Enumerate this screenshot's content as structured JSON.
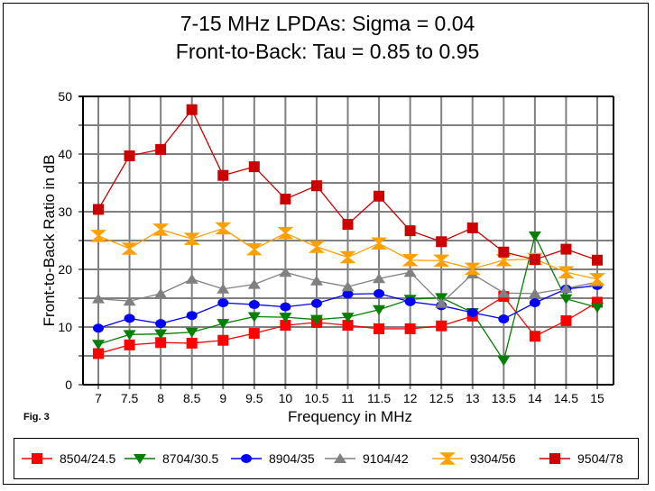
{
  "chart_data": {
    "type": "line",
    "title": "7-15 MHz LPDAs:  Sigma = 0.04",
    "subtitle": "Front-to-Back:  Tau = 0.85 to 0.95",
    "xlabel": "Frequency in MHz",
    "ylabel": "Front-to-Back Ratio in dB",
    "annotation": "Fig. 3",
    "ylim": [
      0,
      50
    ],
    "y_ticks": [
      0,
      10,
      20,
      30,
      40,
      50
    ],
    "y_grid_step": 5,
    "grid": true,
    "legend_position": "bottom",
    "categories": [
      "7",
      "7.5",
      "8",
      "8.5",
      "9",
      "9.5",
      "10",
      "10.5",
      "11",
      "11.5",
      "12",
      "12.5",
      "13",
      "13.5",
      "14",
      "14.5",
      "15"
    ],
    "series": [
      {
        "name": "8504/24.5",
        "color": "#ff0000",
        "marker": "square",
        "values": [
          5.4,
          6.9,
          7.3,
          7.2,
          7.7,
          8.9,
          10.3,
          10.8,
          10.3,
          9.7,
          9.7,
          10.2,
          11.9,
          15.3,
          8.4,
          11.1,
          14.3
        ]
      },
      {
        "name": "8704/30.5",
        "color": "#008000",
        "marker": "triangle-down",
        "values": [
          7.0,
          8.7,
          8.8,
          9.1,
          10.6,
          11.8,
          11.7,
          11.3,
          11.7,
          13.0,
          14.8,
          15.1,
          12.5,
          4.2,
          25.8,
          14.9,
          13.4
        ]
      },
      {
        "name": "8904/35",
        "color": "#0000ff",
        "marker": "circle",
        "values": [
          9.8,
          11.5,
          10.6,
          12.0,
          14.2,
          13.9,
          13.5,
          14.1,
          15.7,
          15.8,
          14.4,
          13.7,
          12.5,
          11.4,
          14.2,
          16.6,
          17.2
        ]
      },
      {
        "name": "9104/42",
        "color": "#808080",
        "marker": "triangle-up",
        "values": [
          14.9,
          14.5,
          15.8,
          18.3,
          16.6,
          17.4,
          19.5,
          18.0,
          17.0,
          18.4,
          19.5,
          14.1,
          19.2,
          15.9,
          15.8,
          16.7,
          17.8
        ]
      },
      {
        "name": "9304/56",
        "color": "#ffa000",
        "marker": "hourglass",
        "values": [
          25.8,
          23.6,
          26.9,
          25.3,
          27.1,
          23.5,
          26.3,
          23.9,
          22.1,
          24.5,
          21.6,
          21.5,
          20.1,
          21.6,
          21.8,
          19.5,
          18.3
        ]
      },
      {
        "name": "9504/78",
        "color": "#cc0000",
        "marker": "square",
        "values": [
          30.4,
          39.7,
          40.8,
          47.7,
          36.3,
          37.8,
          32.2,
          34.5,
          27.8,
          32.7,
          26.7,
          24.8,
          27.2,
          23.0,
          21.7,
          23.5,
          21.6
        ]
      }
    ]
  }
}
